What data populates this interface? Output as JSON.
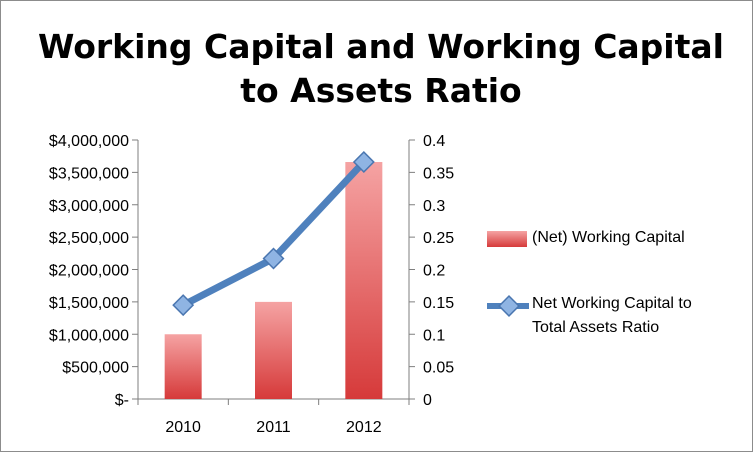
{
  "chart_data": {
    "type": "bar",
    "title_lines": [
      "Working Capital and Working Capital",
      "to Assets Ratio"
    ],
    "categories": [
      "2010",
      "2011",
      "2012"
    ],
    "series": [
      {
        "name": "(Net) Working Capital",
        "kind": "bar",
        "axis": "left",
        "color": "#e04848",
        "values": [
          1000000,
          1500000,
          3660000
        ]
      },
      {
        "name_lines": [
          "Net Working Capital to",
          "Total Assets Ratio"
        ],
        "kind": "line",
        "axis": "right",
        "color": "#4f81bd",
        "values": [
          0.145,
          0.217,
          0.366
        ]
      }
    ],
    "y_left": {
      "ylim": [
        0,
        4000000
      ],
      "tick_labels": [
        "$-",
        "$500,000",
        "$1,000,000",
        "$1,500,000",
        "$2,000,000",
        "$2,500,000",
        "$3,000,000",
        "$3,500,000",
        "$4,000,000"
      ]
    },
    "y_right": {
      "ylim": [
        0,
        0.4
      ],
      "tick_labels": [
        "0",
        "0.05",
        "0.1",
        "0.15",
        "0.2",
        "0.25",
        "0.3",
        "0.35",
        "0.4"
      ]
    },
    "gridlines": false,
    "legend_position": "right"
  }
}
